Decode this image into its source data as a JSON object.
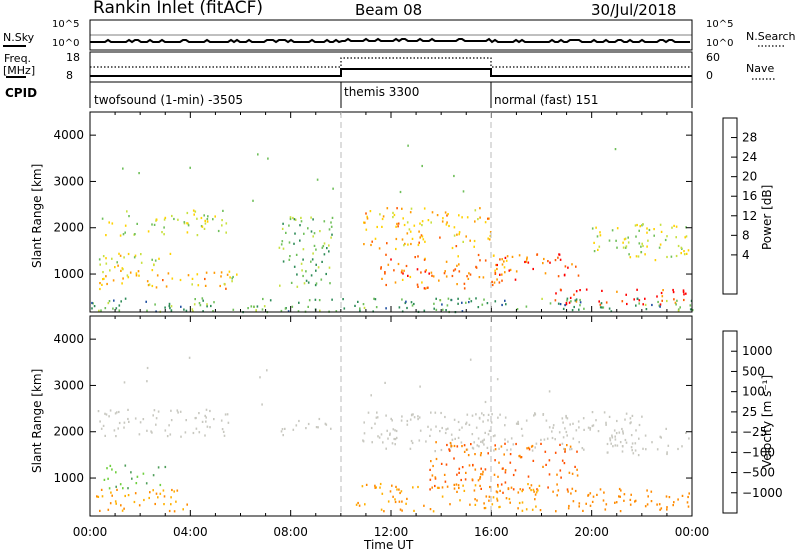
{
  "header": {
    "station": "Rankin Inlet (fitACF)",
    "beam": "Beam 08",
    "date": "30/Jul/2018"
  },
  "param_strip": {
    "nsky_label": "N.Sky",
    "nsky_ticks": [
      "10^5",
      "10^0"
    ],
    "nsearch_label": "N.Search",
    "freq_label": "Freq.",
    "freq_unit": "[MHz]",
    "freq_ticks": [
      "18",
      "8"
    ],
    "nave_ticks": [
      "60",
      "0"
    ],
    "nave_label": "Nave",
    "cpid_label": "CPID"
  },
  "cpid_segments": [
    {
      "start_hour": 0,
      "label": "twofsound (1-min) -3505"
    },
    {
      "start_hour": 10,
      "label": "themis 3300"
    },
    {
      "start_hour": 16,
      "label": "normal (fast) 151"
    }
  ],
  "chart_data": [
    {
      "type": "heatmap",
      "name": "power",
      "xlabel": "",
      "ylabel": "Slant Range [km]",
      "xlim": [
        0,
        24
      ],
      "ylim": [
        180,
        4500
      ],
      "yticks": [
        "1000",
        "2000",
        "3000",
        "4000"
      ],
      "colorbar_label": "Power [dB]",
      "colorbar_ticks": [
        "28",
        "24",
        "20",
        "16",
        "12",
        "8",
        "4"
      ],
      "colorbar_colors": [
        "#ff0000",
        "#ff5a00",
        "#ff9a00",
        "#ffd200",
        "#c8e040",
        "#6fbf5a",
        "#2e8b57",
        "#1f4fa0",
        "#0000ff"
      ],
      "scatter_regions": [
        {
          "t0": 0.3,
          "t1": 5.6,
          "r0": 1850,
          "r1": 2400,
          "value": 12
        },
        {
          "t0": 0.3,
          "t1": 3.2,
          "r0": 1100,
          "r1": 1500,
          "value": 14
        },
        {
          "t0": 0.3,
          "t1": 5.8,
          "r0": 700,
          "r1": 1100,
          "value": 18
        },
        {
          "t0": 5.4,
          "t1": 5.9,
          "r0": 850,
          "r1": 1250,
          "value": 10
        },
        {
          "t0": 7.5,
          "t1": 9.7,
          "r0": 700,
          "r1": 2300,
          "value": 8
        },
        {
          "t0": 10.8,
          "t1": 16.0,
          "r0": 1550,
          "r1": 2450,
          "value": 18
        },
        {
          "t0": 11.5,
          "t1": 17.0,
          "r0": 700,
          "r1": 1450,
          "value": 22
        },
        {
          "t0": 16.0,
          "t1": 19.5,
          "r0": 950,
          "r1": 1450,
          "value": 24
        },
        {
          "t0": 18.5,
          "t1": 23.9,
          "r0": 350,
          "r1": 700,
          "value": 26
        },
        {
          "t0": 20.0,
          "t1": 23.9,
          "r0": 1300,
          "r1": 2100,
          "value": 12
        },
        {
          "t0": 0.0,
          "t1": 24.0,
          "r0": 200,
          "r1": 500,
          "value": 6
        }
      ]
    },
    {
      "type": "heatmap",
      "name": "velocity",
      "xlabel": "Time UT",
      "ylabel": "Slant Range [km]",
      "xlim": [
        0,
        24
      ],
      "ylim": [
        180,
        4500
      ],
      "xticks": [
        "00:00",
        "04:00",
        "08:00",
        "12:00",
        "16:00",
        "20:00",
        "00:00"
      ],
      "yticks": [
        "1000",
        "2000",
        "3000",
        "4000"
      ],
      "colorbar_label": "Velocity [m s⁻¹]",
      "colorbar_ticks": [
        "1000",
        "500",
        "100",
        "25",
        "−25",
        "−100",
        "−500",
        "−1000"
      ],
      "colorbar_colors": [
        "#2a3fb0",
        "#2f7a4e",
        "#4f9e5a",
        "#6fcf3e",
        "#c8c8c0",
        "#ffb000",
        "#ff8a00",
        "#ff5000",
        "#ff0000"
      ],
      "scatter_regions": [
        {
          "t0": 0.3,
          "t1": 5.6,
          "r0": 1900,
          "r1": 2500,
          "value": 0
        },
        {
          "t0": 0.5,
          "t1": 3.0,
          "r0": 800,
          "r1": 1300,
          "value": 100
        },
        {
          "t0": 0.2,
          "t1": 4.0,
          "r0": 300,
          "r1": 800,
          "value": -100
        },
        {
          "t0": 7.5,
          "t1": 9.7,
          "r0": 1900,
          "r1": 2300,
          "value": 0
        },
        {
          "t0": 10.8,
          "t1": 22.0,
          "r0": 1600,
          "r1": 2450,
          "value": 0
        },
        {
          "t0": 13.5,
          "t1": 19.5,
          "r0": 700,
          "r1": 1800,
          "value": -500
        },
        {
          "t0": 10.5,
          "t1": 18.0,
          "r0": 300,
          "r1": 900,
          "value": -100
        },
        {
          "t0": 18.5,
          "t1": 23.9,
          "r0": 300,
          "r1": 800,
          "value": -300
        },
        {
          "t0": 20.5,
          "t1": 23.9,
          "r0": 1500,
          "r1": 2100,
          "value": 0
        }
      ]
    }
  ]
}
